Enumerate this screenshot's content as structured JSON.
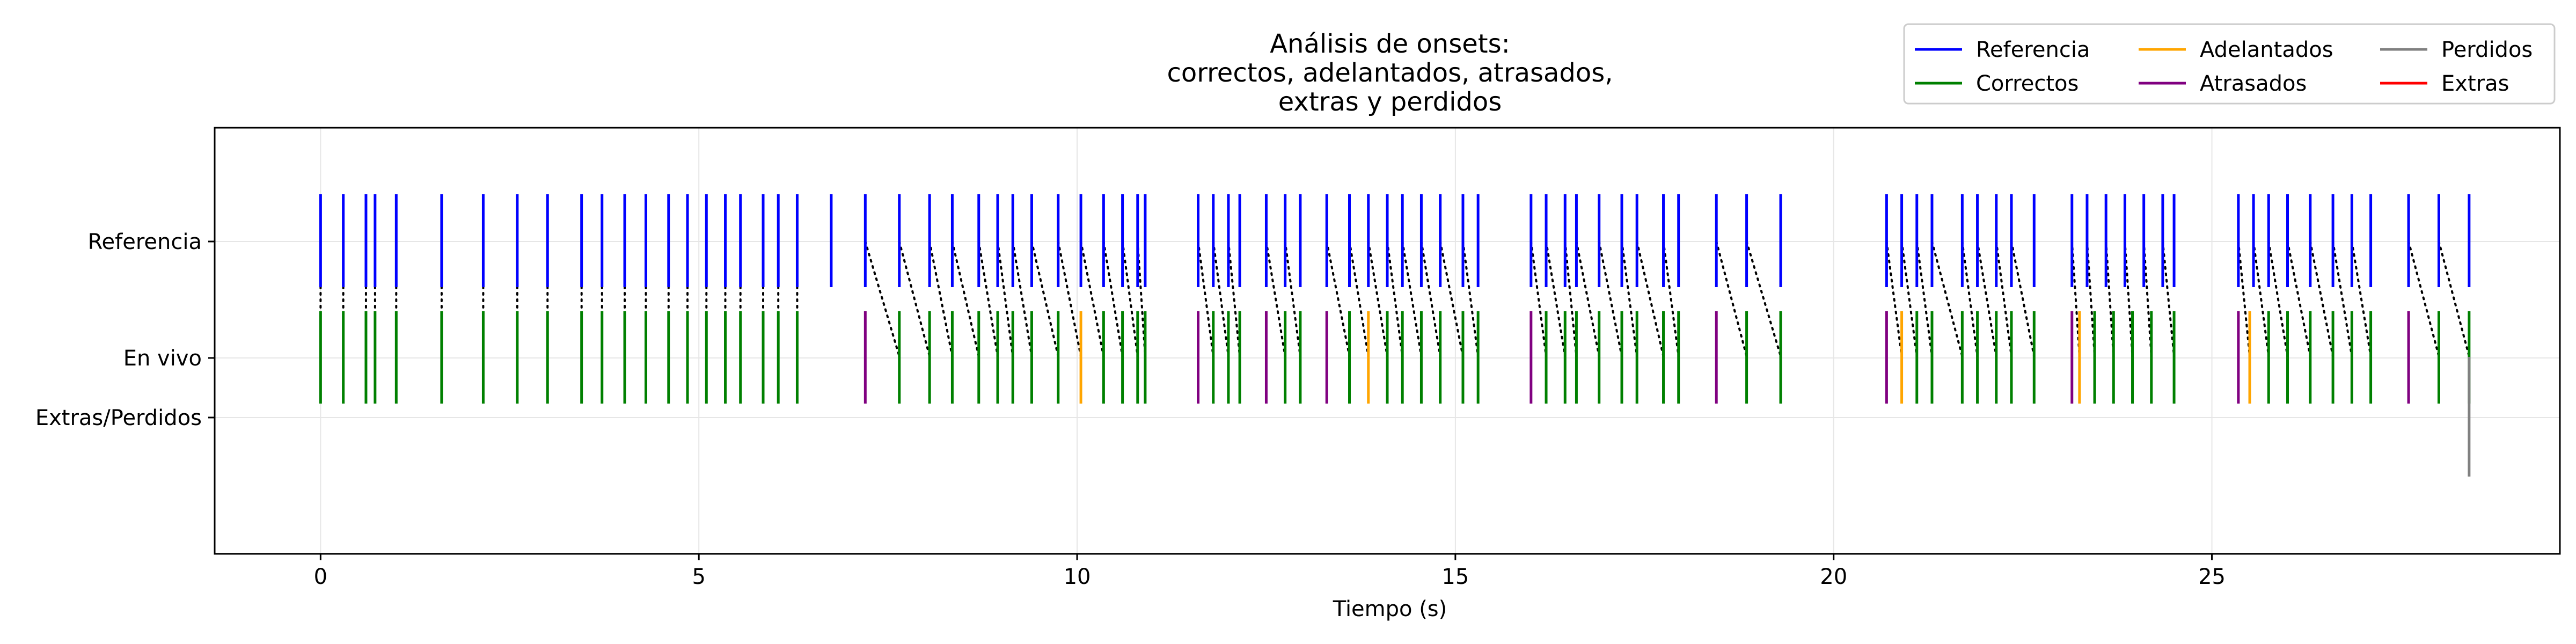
{
  "chart_data": {
    "type": "event",
    "title_lines": [
      "Análisis de onsets:",
      "correctos, adelantados, atrasados,",
      "extras y perdidos"
    ],
    "xlabel": "Tiempo (s)",
    "ylabel": "",
    "xlim": [
      -1.4,
      29.6
    ],
    "x_ticks": [
      0,
      5,
      10,
      15,
      20,
      25
    ],
    "x_tick_labels": [
      "0",
      "5",
      "10",
      "15",
      "20",
      "25"
    ],
    "y_tick_labels": [
      "Referencia",
      "En vivo",
      "Extras/Perdidos"
    ],
    "grid": true,
    "legend_position": "top-right",
    "colors": {
      "referencia": "#0000ff",
      "correctos": "#008000",
      "adelantados": "#ffa500",
      "atrasados": "#800080",
      "perdidos": "#808080",
      "extras": "#ff0000",
      "match_line": "#000000"
    },
    "legend": [
      {
        "label": "Referencia",
        "color": "#0000ff"
      },
      {
        "label": "Correctos",
        "color": "#008000"
      },
      {
        "label": "Adelantados",
        "color": "#ffa500"
      },
      {
        "label": "Atrasados",
        "color": "#800080"
      },
      {
        "label": "Perdidos",
        "color": "#808080"
      },
      {
        "label": "Extras",
        "color": "#ff0000"
      }
    ],
    "series": {
      "referencia": [
        0.0,
        0.3,
        0.6,
        0.72,
        1.0,
        1.6,
        2.15,
        2.6,
        3.0,
        3.45,
        3.72,
        4.02,
        4.3,
        4.6,
        4.85,
        5.1,
        5.35,
        5.55,
        5.85,
        6.05,
        6.3,
        6.75,
        7.2,
        7.65,
        8.05,
        8.35,
        8.7,
        8.95,
        9.15,
        9.4,
        9.75,
        10.05,
        10.35,
        10.6,
        10.8,
        10.9,
        11.6,
        11.8,
        12.0,
        12.15,
        12.5,
        12.75,
        12.95,
        13.3,
        13.6,
        13.85,
        14.1,
        14.3,
        14.55,
        14.8,
        15.1,
        15.3,
        16.0,
        16.2,
        16.45,
        16.6,
        16.9,
        17.2,
        17.4,
        17.75,
        17.95,
        18.45,
        18.85,
        19.3,
        20.7,
        20.9,
        21.1,
        21.3,
        21.7,
        21.9,
        22.15,
        22.35,
        22.65,
        23.15,
        23.35,
        23.6,
        23.85,
        24.1,
        24.35,
        24.5,
        25.35,
        25.55,
        25.75,
        26.0,
        26.3,
        26.6,
        26.85,
        27.1,
        27.6,
        28.0,
        28.4
      ],
      "en_vivo": [
        {
          "t": 0.0,
          "ref": 0.0,
          "type": "correctos"
        },
        {
          "t": 0.3,
          "ref": 0.3,
          "type": "correctos"
        },
        {
          "t": 0.6,
          "ref": 0.6,
          "type": "correctos"
        },
        {
          "t": 0.72,
          "ref": 0.72,
          "type": "correctos"
        },
        {
          "t": 1.0,
          "ref": 1.0,
          "type": "correctos"
        },
        {
          "t": 1.6,
          "ref": 1.6,
          "type": "correctos"
        },
        {
          "t": 2.15,
          "ref": 2.15,
          "type": "correctos"
        },
        {
          "t": 2.6,
          "ref": 2.6,
          "type": "correctos"
        },
        {
          "t": 3.0,
          "ref": 3.0,
          "type": "correctos"
        },
        {
          "t": 3.45,
          "ref": 3.45,
          "type": "correctos"
        },
        {
          "t": 3.72,
          "ref": 3.72,
          "type": "correctos"
        },
        {
          "t": 4.02,
          "ref": 4.02,
          "type": "correctos"
        },
        {
          "t": 4.3,
          "ref": 4.3,
          "type": "correctos"
        },
        {
          "t": 4.6,
          "ref": 4.6,
          "type": "correctos"
        },
        {
          "t": 4.85,
          "ref": 4.85,
          "type": "correctos"
        },
        {
          "t": 5.1,
          "ref": 5.1,
          "type": "correctos"
        },
        {
          "t": 5.35,
          "ref": 5.35,
          "type": "correctos"
        },
        {
          "t": 5.55,
          "ref": 5.55,
          "type": "correctos"
        },
        {
          "t": 5.85,
          "ref": 5.85,
          "type": "correctos"
        },
        {
          "t": 6.05,
          "ref": 6.05,
          "type": "correctos"
        },
        {
          "t": 6.3,
          "ref": 6.3,
          "type": "correctos"
        },
        {
          "t": 7.2,
          "ref": null,
          "type": "atrasados"
        },
        {
          "t": 7.65,
          "ref": 7.2,
          "type": "correctos"
        },
        {
          "t": 8.05,
          "ref": 7.65,
          "type": "correctos"
        },
        {
          "t": 8.35,
          "ref": 8.05,
          "type": "correctos"
        },
        {
          "t": 8.7,
          "ref": 8.35,
          "type": "correctos"
        },
        {
          "t": 8.95,
          "ref": 8.7,
          "type": "correctos"
        },
        {
          "t": 9.15,
          "ref": 8.95,
          "type": "correctos"
        },
        {
          "t": 9.4,
          "ref": 9.15,
          "type": "correctos"
        },
        {
          "t": 9.75,
          "ref": 9.4,
          "type": "correctos"
        },
        {
          "t": 10.05,
          "ref": 9.75,
          "type": "adelantados"
        },
        {
          "t": 10.35,
          "ref": 10.05,
          "type": "correctos"
        },
        {
          "t": 10.6,
          "ref": 10.35,
          "type": "correctos"
        },
        {
          "t": 10.8,
          "ref": 10.6,
          "type": "correctos"
        },
        {
          "t": 10.9,
          "ref": 10.8,
          "type": "correctos"
        },
        {
          "t": 11.6,
          "ref": null,
          "type": "atrasados"
        },
        {
          "t": 11.8,
          "ref": 11.6,
          "type": "correctos"
        },
        {
          "t": 12.0,
          "ref": 11.8,
          "type": "correctos"
        },
        {
          "t": 12.15,
          "ref": 12.0,
          "type": "correctos"
        },
        {
          "t": 12.5,
          "ref": null,
          "type": "atrasados"
        },
        {
          "t": 12.75,
          "ref": 12.5,
          "type": "correctos"
        },
        {
          "t": 12.95,
          "ref": 12.75,
          "type": "correctos"
        },
        {
          "t": 13.3,
          "ref": null,
          "type": "atrasados"
        },
        {
          "t": 13.6,
          "ref": 13.3,
          "type": "correctos"
        },
        {
          "t": 13.85,
          "ref": 13.6,
          "type": "adelantados"
        },
        {
          "t": 14.1,
          "ref": 13.85,
          "type": "correctos"
        },
        {
          "t": 14.3,
          "ref": 14.1,
          "type": "correctos"
        },
        {
          "t": 14.55,
          "ref": 14.3,
          "type": "correctos"
        },
        {
          "t": 14.8,
          "ref": 14.55,
          "type": "correctos"
        },
        {
          "t": 15.1,
          "ref": 14.8,
          "type": "correctos"
        },
        {
          "t": 15.3,
          "ref": 15.1,
          "type": "correctos"
        },
        {
          "t": 16.0,
          "ref": null,
          "type": "atrasados"
        },
        {
          "t": 16.2,
          "ref": 16.0,
          "type": "correctos"
        },
        {
          "t": 16.45,
          "ref": 16.2,
          "type": "correctos"
        },
        {
          "t": 16.6,
          "ref": 16.45,
          "type": "correctos"
        },
        {
          "t": 16.9,
          "ref": 16.6,
          "type": "correctos"
        },
        {
          "t": 17.2,
          "ref": 16.9,
          "type": "correctos"
        },
        {
          "t": 17.4,
          "ref": 17.2,
          "type": "correctos"
        },
        {
          "t": 17.75,
          "ref": 17.4,
          "type": "correctos"
        },
        {
          "t": 17.95,
          "ref": 17.75,
          "type": "correctos"
        },
        {
          "t": 18.45,
          "ref": null,
          "type": "atrasados"
        },
        {
          "t": 18.85,
          "ref": 18.45,
          "type": "correctos"
        },
        {
          "t": 19.3,
          "ref": 18.85,
          "type": "correctos"
        },
        {
          "t": 20.7,
          "ref": null,
          "type": "atrasados"
        },
        {
          "t": 20.9,
          "ref": 20.7,
          "type": "adelantados"
        },
        {
          "t": 21.1,
          "ref": 20.9,
          "type": "correctos"
        },
        {
          "t": 21.3,
          "ref": 21.1,
          "type": "correctos"
        },
        {
          "t": 21.7,
          "ref": 21.3,
          "type": "correctos"
        },
        {
          "t": 21.9,
          "ref": 21.7,
          "type": "correctos"
        },
        {
          "t": 22.15,
          "ref": 21.9,
          "type": "correctos"
        },
        {
          "t": 22.35,
          "ref": 22.15,
          "type": "correctos"
        },
        {
          "t": 22.65,
          "ref": 22.35,
          "type": "correctos"
        },
        {
          "t": 23.15,
          "ref": null,
          "type": "atrasados"
        },
        {
          "t": 23.25,
          "ref": 23.15,
          "type": "adelantados"
        },
        {
          "t": 23.45,
          "ref": 23.35,
          "type": "correctos"
        },
        {
          "t": 23.7,
          "ref": 23.6,
          "type": "correctos"
        },
        {
          "t": 23.95,
          "ref": 23.85,
          "type": "correctos"
        },
        {
          "t": 24.2,
          "ref": 24.1,
          "type": "correctos"
        },
        {
          "t": 24.5,
          "ref": 24.35,
          "type": "correctos"
        },
        {
          "t": 25.35,
          "ref": null,
          "type": "atrasados"
        },
        {
          "t": 25.5,
          "ref": 25.35,
          "type": "adelantados"
        },
        {
          "t": 25.75,
          "ref": 25.55,
          "type": "correctos"
        },
        {
          "t": 26.0,
          "ref": 25.75,
          "type": "correctos"
        },
        {
          "t": 26.3,
          "ref": 26.0,
          "type": "correctos"
        },
        {
          "t": 26.6,
          "ref": 26.3,
          "type": "correctos"
        },
        {
          "t": 26.85,
          "ref": 26.6,
          "type": "correctos"
        },
        {
          "t": 27.1,
          "ref": 26.85,
          "type": "correctos"
        },
        {
          "t": 27.6,
          "ref": null,
          "type": "atrasados"
        },
        {
          "t": 28.0,
          "ref": 27.6,
          "type": "correctos"
        },
        {
          "t": 28.4,
          "ref": 28.0,
          "type": "correctos"
        }
      ],
      "perdidos": [
        28.4
      ],
      "extras": []
    }
  }
}
